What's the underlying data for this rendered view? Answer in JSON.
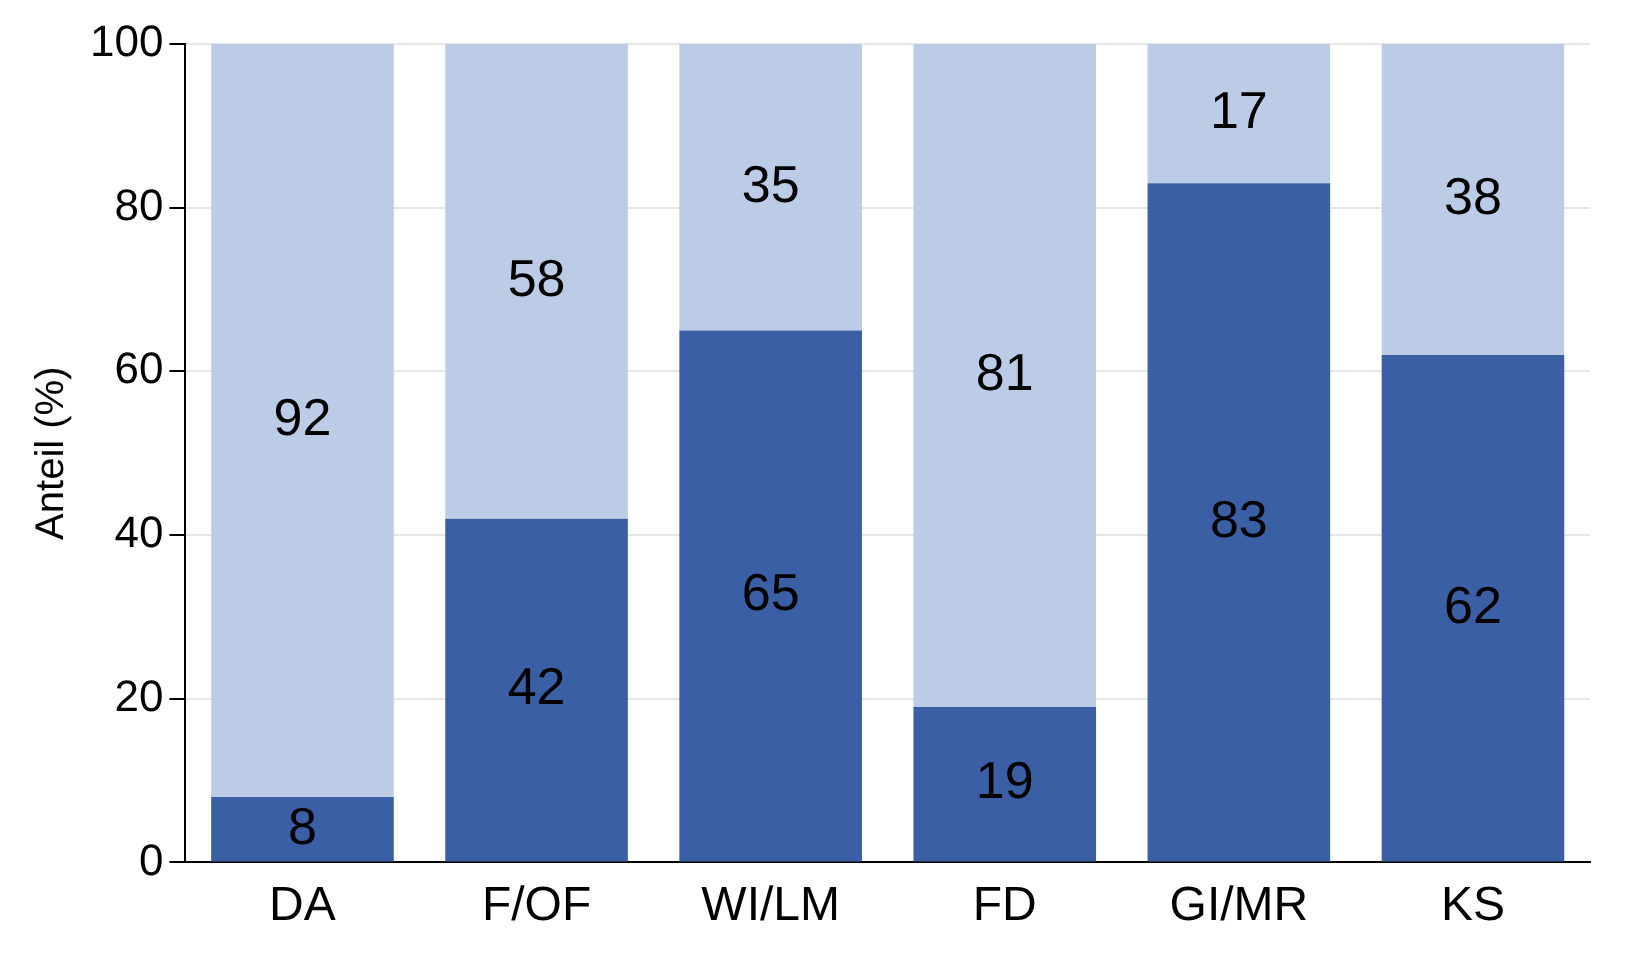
{
  "chart_data": {
    "type": "bar",
    "stacked": true,
    "ylabel": "Anteil (%)",
    "categories": [
      "DA",
      "F/OF",
      "WI/LM",
      "FD",
      "GI/MR",
      "KS"
    ],
    "series": [
      {
        "color": "#3a5fa5",
        "values": [
          8,
          42,
          65,
          19,
          83,
          62
        ]
      },
      {
        "color": "#bccbe6",
        "values": [
          92,
          58,
          35,
          81,
          17,
          38
        ]
      }
    ],
    "ylim": [
      0,
      100
    ],
    "yticks": [
      0,
      20,
      40,
      60,
      80,
      100
    ],
    "grid": "y",
    "data_labels": true
  }
}
